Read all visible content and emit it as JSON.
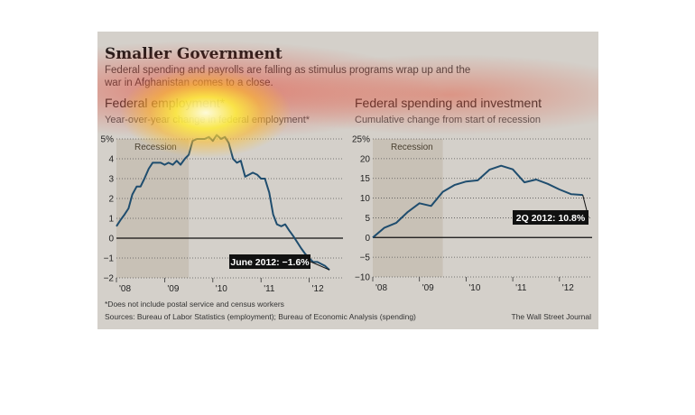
{
  "header": {
    "title": "Smaller Government",
    "subtitle": "Federal spending and payrolls are falling as stimulus programs wrap up and the war in Afghanistan comes to a close."
  },
  "footer": {
    "note": "*Does not include postal service and census workers",
    "sources": "Sources: Bureau of Labor Statistics (employment); Bureau of Economic Analysis (spending)",
    "credit": "The Wall Street Journal"
  },
  "colors": {
    "background": "#d4d0ca",
    "line": "#1f4d6e",
    "recession": "#bdb5a6",
    "label_bg": "#111111"
  },
  "chart_data": [
    {
      "type": "line",
      "title": "Federal employment*",
      "subtitle": "Year-over-year change in federal employment*",
      "yticks": [
        "5%",
        "4",
        "3",
        "2",
        "1",
        "0",
        "−1",
        "−2"
      ],
      "ylim": [
        -2,
        5
      ],
      "xticks": [
        "'08",
        "'09",
        "'10",
        "'11",
        "'12"
      ],
      "xlim": [
        2008,
        2012.7
      ],
      "recession_label": "Recession",
      "recession": [
        2008.0,
        2009.5
      ],
      "callout": "June 2012: −1.6%",
      "x": [
        2008.0,
        2008.08,
        2008.17,
        2008.25,
        2008.33,
        2008.42,
        2008.5,
        2008.58,
        2008.67,
        2008.75,
        2008.83,
        2008.92,
        2009.0,
        2009.08,
        2009.17,
        2009.25,
        2009.33,
        2009.42,
        2009.5,
        2009.58,
        2009.67,
        2009.75,
        2009.83,
        2009.92,
        2010.0,
        2010.08,
        2010.17,
        2010.25,
        2010.33,
        2010.42,
        2010.5,
        2010.58,
        2010.67,
        2010.75,
        2010.83,
        2010.92,
        2011.0,
        2011.08,
        2011.17,
        2011.25,
        2011.33,
        2011.42,
        2011.5,
        2011.58,
        2011.67,
        2011.75,
        2011.83,
        2011.92,
        2012.0,
        2012.08,
        2012.17,
        2012.25,
        2012.33,
        2012.42
      ],
      "series": [
        {
          "values": [
            0.6,
            0.9,
            1.2,
            1.5,
            2.2,
            2.6,
            2.6,
            3.0,
            3.5,
            3.8,
            3.8,
            3.8,
            3.7,
            3.8,
            3.7,
            3.9,
            3.7,
            4.0,
            4.2,
            4.9,
            5.0,
            5.0,
            5.0,
            5.1,
            4.9,
            5.2,
            5.0,
            5.1,
            4.8,
            4.0,
            3.8,
            3.9,
            3.1,
            3.2,
            3.3,
            3.2,
            3.0,
            3.0,
            2.3,
            1.2,
            0.7,
            0.6,
            0.7,
            0.4,
            0.1,
            -0.2,
            -0.5,
            -0.8,
            -1.0,
            -1.2,
            -1.2,
            -1.3,
            -1.4,
            -1.6
          ]
        }
      ]
    },
    {
      "type": "line",
      "title": "Federal spending and investment",
      "subtitle": "Cumulative change from start of recession",
      "yticks": [
        "25%",
        "20",
        "15",
        "10",
        "5",
        "0",
        "−5",
        "−10"
      ],
      "ylim": [
        -10,
        25
      ],
      "xticks": [
        "'08",
        "'09",
        "'10",
        "'11",
        "'12"
      ],
      "xlim": [
        2008,
        2012.7
      ],
      "recession_label": "Recession",
      "recession": [
        2008.0,
        2009.5
      ],
      "callout": "2Q 2012: 10.8%",
      "x": [
        2008.0,
        2008.25,
        2008.5,
        2008.75,
        2009.0,
        2009.25,
        2009.5,
        2009.75,
        2010.0,
        2010.25,
        2010.5,
        2010.75,
        2011.0,
        2011.25,
        2011.5,
        2011.75,
        2012.0,
        2012.25,
        2012.5
      ],
      "series": [
        {
          "values": [
            0.0,
            2.5,
            3.7,
            6.5,
            8.7,
            8.0,
            11.6,
            13.3,
            14.2,
            14.5,
            17.2,
            18.2,
            17.3,
            14.0,
            14.7,
            13.6,
            12.2,
            11.0,
            10.8
          ]
        }
      ]
    }
  ]
}
